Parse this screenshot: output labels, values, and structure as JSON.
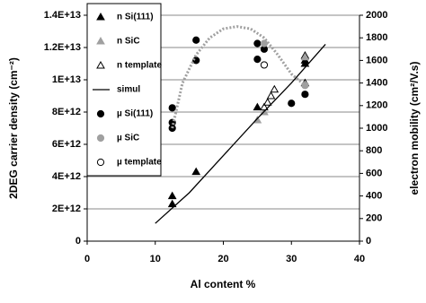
{
  "chart_data": {
    "type": "scatter",
    "xlabel": "Al content %",
    "ylabel": "2DEG carrier density (cm⁻²)",
    "y2label": "electron mobility (cm²/V.s)",
    "xlim": [
      0,
      40
    ],
    "xticks": [
      0,
      10,
      20,
      30,
      40
    ],
    "ylim": [
      0,
      14000000000000.0
    ],
    "yticks": [
      0,
      {
        "value": 2000000000000.0,
        "label": "2E+12"
      },
      {
        "value": 4000000000000.0,
        "label": "4E+12"
      },
      {
        "value": 6000000000000.0,
        "label": "6E+12"
      },
      {
        "value": 8000000000000.0,
        "label": "8E+12"
      },
      {
        "value": 10000000000000.0,
        "label": "1E+13"
      },
      {
        "value": 12000000000000.0,
        "label": "1.2E+13"
      },
      {
        "value": 14000000000000.0,
        "label": "1.4E+13"
      }
    ],
    "y2lim": [
      0,
      2000
    ],
    "y2ticks": [
      0,
      200,
      400,
      600,
      800,
      1000,
      1200,
      1400,
      1600,
      1800,
      2000
    ],
    "grid": true,
    "series": [
      {
        "name": "n Si(111)",
        "marker": "triangle",
        "color": "#000000",
        "filled": true,
        "x": [
          12.5,
          12.5,
          16,
          25,
          32,
          32,
          32
        ],
        "values": [
          2800000000000.0,
          2300000000000.0,
          4300000000000.0,
          8300000000000.0,
          11200000000000.0,
          11500000000000.0,
          11000000000000.0
        ]
      },
      {
        "name": "n SiC",
        "marker": "triangle",
        "color": "#a0a0a0",
        "filled": true,
        "x": [
          25,
          26,
          32
        ],
        "values": [
          7500000000000.0,
          8000000000000.0,
          11400000000000.0
        ]
      },
      {
        "name": "n template",
        "marker": "triangle",
        "color": "#000000",
        "filled": false,
        "x": [
          26,
          26.5,
          27,
          27.5,
          32
        ],
        "values": [
          8300000000000.0,
          8600000000000.0,
          9000000000000.0,
          9400000000000.0,
          9800000000000.0
        ]
      },
      {
        "name": "simul",
        "marker": "line",
        "color": "#000000",
        "x": [
          10,
          15,
          20,
          25,
          30,
          35
        ],
        "values": [
          1100000000000.0,
          3000000000000.0,
          5300000000000.0,
          7600000000000.0,
          9800000000000.0,
          12200000000000.0
        ]
      },
      {
        "name": "µ Si(111)",
        "marker": "circle",
        "color": "#000000",
        "filled": true,
        "axis": "y2",
        "x": [
          12.5,
          12.5,
          12.5,
          16,
          16,
          25,
          25,
          26,
          30,
          32,
          32
        ],
        "values": [
          1000,
          1050,
          1180,
          1780,
          1600,
          1750,
          1610,
          1700,
          1220,
          1300,
          1380
        ]
      },
      {
        "name": "µ SiC",
        "marker": "circle",
        "color": "#a0a0a0",
        "filled": true,
        "axis": "y2",
        "x": [
          26,
          32
        ],
        "values": [
          1750,
          1380
        ]
      },
      {
        "name": "µ template",
        "marker": "circle",
        "color": "#000000",
        "filled": false,
        "axis": "y2",
        "x": [
          26
        ],
        "values": [
          1560
        ]
      },
      {
        "marker": "dotted",
        "color": "#a0a0a0",
        "axis": "y2",
        "x": [
          12.5,
          14,
          16,
          18,
          20,
          22,
          24,
          26,
          28,
          30,
          32
        ],
        "values": [
          1000,
          1400,
          1650,
          1800,
          1880,
          1900,
          1880,
          1800,
          1650,
          1480,
          1380
        ]
      }
    ]
  }
}
